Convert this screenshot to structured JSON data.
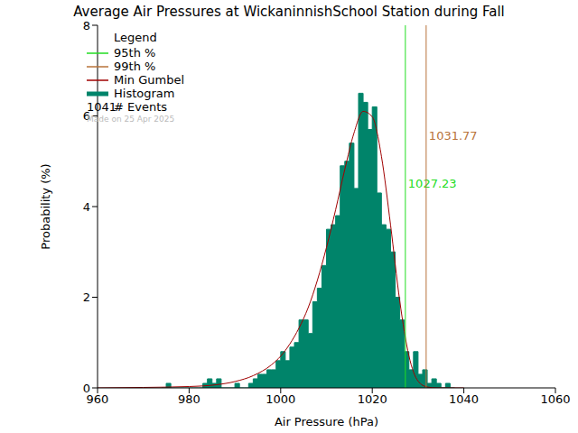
{
  "chart_data": {
    "type": "histogram",
    "title": "Average Air Pressures at WickaninnishSchool Station during Fall",
    "x_label": "Air Pressure (hPa)",
    "y_label": "Probability (%)",
    "name": "Histogram",
    "color": "#00846a",
    "bins": [
      974,
      975,
      976,
      977,
      978,
      979,
      980,
      981,
      982,
      983,
      984,
      985,
      986,
      987,
      988,
      989,
      990,
      991,
      992,
      993,
      994,
      995,
      996,
      997,
      998,
      999,
      1000,
      1001,
      1002,
      1003,
      1004,
      1005,
      1006,
      1007,
      1008,
      1009,
      1010,
      1011,
      1012,
      1013,
      1014,
      1015,
      1016,
      1017,
      1018,
      1019,
      1020,
      1021,
      1022,
      1023,
      1024,
      1025,
      1026,
      1027,
      1028,
      1029,
      1030,
      1031,
      1032,
      1033,
      1034,
      1035,
      1036,
      1037,
      1038
    ],
    "values": [
      0,
      0.1,
      0,
      0,
      0,
      0,
      0,
      0,
      0,
      0.1,
      0.2,
      0.1,
      0.2,
      0,
      0,
      0,
      0.1,
      0,
      0,
      0.1,
      0.2,
      0.3,
      0.3,
      0.4,
      0.4,
      0.6,
      0.8,
      0.6,
      0.9,
      1.0,
      1.5,
      1.5,
      1.2,
      1.9,
      2.2,
      2.7,
      3.5,
      3.6,
      3.8,
      4.9,
      5.0,
      5.4,
      4.4,
      6.5,
      6.3,
      5.7,
      6.2,
      4.3,
      3.6,
      3.5,
      3.0,
      2.0,
      1.5,
      0.8,
      0.4,
      0.8,
      0.3,
      0.4,
      0.1,
      0.2,
      0.1,
      0,
      0.1,
      0
    ],
    "xlim": [
      960,
      1060
    ],
    "xticks": [
      960,
      980,
      1000,
      1020,
      1040,
      1060
    ],
    "ylim": [
      0,
      8
    ],
    "yticks": [
      0,
      2,
      4,
      6,
      8
    ],
    "series": [
      {
        "name": "Min Gumbel",
        "type": "line",
        "color": "#a00000",
        "x": [
          960,
          970,
          980,
          986,
          990,
          994,
          998,
          1000,
          1002,
          1004,
          1006,
          1008,
          1010,
          1012,
          1014,
          1016,
          1018,
          1020,
          1022,
          1024,
          1026,
          1028,
          1030,
          1032,
          1034,
          1040
        ],
        "values": [
          0,
          0.01,
          0.03,
          0.07,
          0.14,
          0.27,
          0.51,
          0.7,
          0.97,
          1.32,
          1.77,
          2.37,
          3.1,
          3.93,
          4.82,
          5.62,
          6.1,
          5.98,
          5.11,
          3.59,
          1.92,
          0.71,
          0.15,
          0.02,
          0,
          0
        ]
      }
    ],
    "reference_lines": [
      {
        "name": "95th %",
        "value": 1027.23,
        "color": "#22dd22"
      },
      {
        "name": "99th %",
        "value": 1031.77,
        "color": "#b8733a"
      }
    ],
    "legend": "upper left",
    "legend_title": "Legend",
    "events": {
      "value": 1041,
      "label": "# Events"
    },
    "annotation": "Made on 25 Apr 2025"
  }
}
